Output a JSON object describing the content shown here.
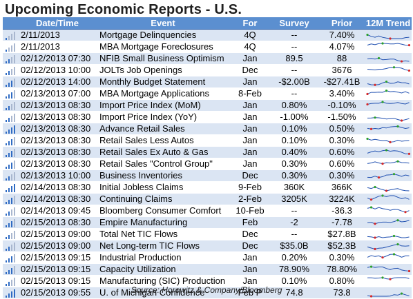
{
  "title": "Upcoming Economic Reports - U.S.",
  "headers": {
    "datetime": "Date/Time",
    "event": "Event",
    "for": "For",
    "survey": "Survey",
    "prior": "Prior",
    "trend": "12M Trend"
  },
  "rows": [
    {
      "datetime": "2/11/2013",
      "event": "Mortgage Delinquencies",
      "for": "4Q",
      "survey": "--",
      "prior": "7.40%",
      "level": 1
    },
    {
      "datetime": "2/11/2013",
      "event": "MBA Mortgage Foreclosures",
      "for": "4Q",
      "survey": "--",
      "prior": "4.07%",
      "level": 1
    },
    {
      "datetime": "02/12/2013 07:30",
      "event": "NFIB Small Business Optimism",
      "for": "Jan",
      "survey": "89.5",
      "prior": "88",
      "level": 2
    },
    {
      "datetime": "02/12/2013 10:00",
      "event": "JOLTs Job Openings",
      "for": "Dec",
      "survey": "--",
      "prior": "3676",
      "level": 2
    },
    {
      "datetime": "02/12/2013 14:00",
      "event": "Monthly Budget Statement",
      "for": "Jan",
      "survey": "-$2.00B",
      "prior": "-$27.41B",
      "level": 3
    },
    {
      "datetime": "02/13/2013 07:00",
      "event": "MBA Mortgage Applications",
      "for": "8-Feb",
      "survey": "--",
      "prior": "3.40%",
      "level": 3
    },
    {
      "datetime": "02/13/2013 08:30",
      "event": "Import Price Index (MoM)",
      "for": "Jan",
      "survey": "0.80%",
      "prior": "-0.10%",
      "level": 2
    },
    {
      "datetime": "02/13/2013 08:30",
      "event": "Import Price Index (YoY)",
      "for": "Jan",
      "survey": "-1.00%",
      "prior": "-1.50%",
      "level": 2
    },
    {
      "datetime": "02/13/2013 08:30",
      "event": "Advance Retail Sales",
      "for": "Jan",
      "survey": "0.10%",
      "prior": "0.50%",
      "level": 4
    },
    {
      "datetime": "02/13/2013 08:30",
      "event": "Retail Sales Less Autos",
      "for": "Jan",
      "survey": "0.10%",
      "prior": "0.30%",
      "level": 3
    },
    {
      "datetime": "02/13/2013 08:30",
      "event": "Retail Sales Ex Auto & Gas",
      "for": "Jan",
      "survey": "0.40%",
      "prior": "0.60%",
      "level": 3
    },
    {
      "datetime": "02/13/2013 08:30",
      "event": "Retail Sales \"Control Group\"",
      "for": "Jan",
      "survey": "0.30%",
      "prior": "0.60%",
      "level": 3
    },
    {
      "datetime": "02/13/2013 10:00",
      "event": "Business Inventories",
      "for": "Dec",
      "survey": "0.30%",
      "prior": "0.30%",
      "level": 2
    },
    {
      "datetime": "02/14/2013 08:30",
      "event": "Initial Jobless Claims",
      "for": "9-Feb",
      "survey": "360K",
      "prior": "366K",
      "level": 4
    },
    {
      "datetime": "02/14/2013 08:30",
      "event": "Continuing Claims",
      "for": "2-Feb",
      "survey": "3205K",
      "prior": "3224K",
      "level": 3
    },
    {
      "datetime": "02/14/2013 09:45",
      "event": "Bloomberg Consumer Comfort",
      "for": "10-Feb",
      "survey": "--",
      "prior": "-36.3",
      "level": 2
    },
    {
      "datetime": "02/15/2013 08:30",
      "event": "Empire Manufacturing",
      "for": "Feb",
      "survey": "-2",
      "prior": "-7.78",
      "level": 3
    },
    {
      "datetime": "02/15/2013 09:00",
      "event": "Total Net TIC Flows",
      "for": "Dec",
      "survey": "--",
      "prior": "$27.8B",
      "level": 2
    },
    {
      "datetime": "02/15/2013 09:00",
      "event": "Net Long-term TIC Flows",
      "for": "Dec",
      "survey": "$35.0B",
      "prior": "$52.3B",
      "level": 2
    },
    {
      "datetime": "02/15/2013 09:15",
      "event": "Industrial Production",
      "for": "Jan",
      "survey": "0.20%",
      "prior": "0.30%",
      "level": 3
    },
    {
      "datetime": "02/15/2013 09:15",
      "event": "Capacity Utilization",
      "for": "Jan",
      "survey": "78.90%",
      "prior": "78.80%",
      "level": 3
    },
    {
      "datetime": "02/15/2013 09:15",
      "event": "Manufacturing (SIC) Production",
      "for": "Jan",
      "survey": "0.10%",
      "prior": "0.80%",
      "level": 2
    },
    {
      "datetime": "02/15/2013 09:55",
      "event": "U. of Michigan Confidence",
      "for": "Feb P",
      "survey": "74.8",
      "prior": "73.8",
      "level": 4
    }
  ],
  "source": "Source: Horowitz & Company/Bloomberg",
  "colors": {
    "header_bg": "#5b8fd0",
    "stripe": "#dbe5f3",
    "bar_on": "#2f6bc3",
    "spark_line": "#1f4fb0",
    "spark_high": "#2ca02c",
    "spark_low": "#d62728"
  }
}
